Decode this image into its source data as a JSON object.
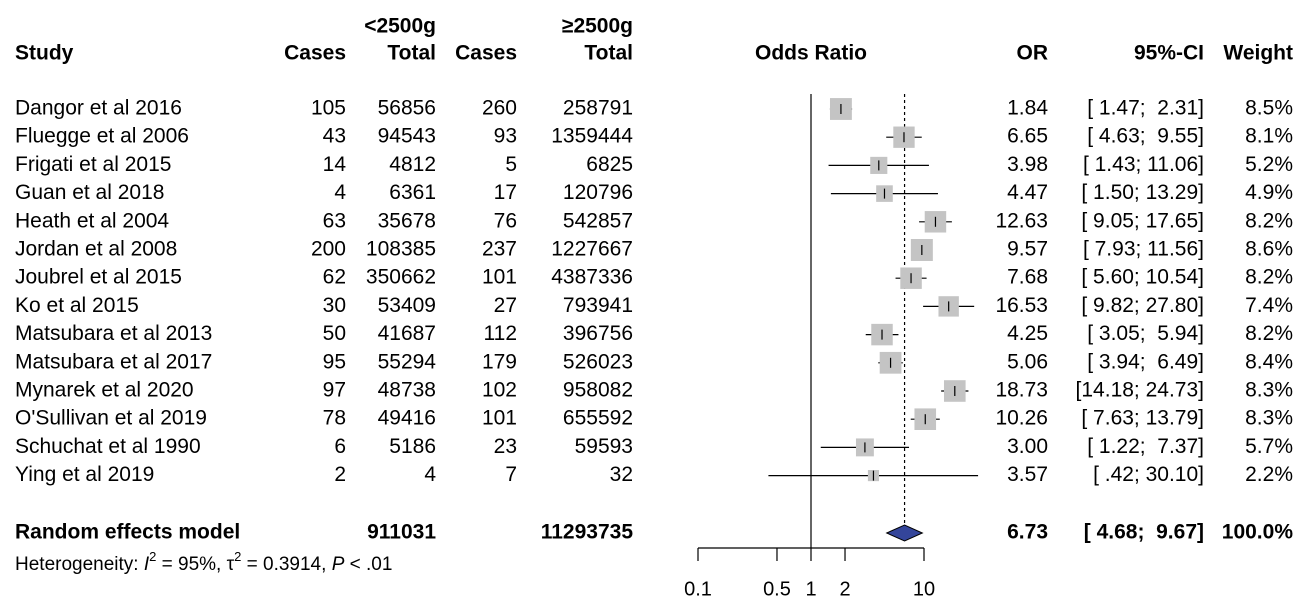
{
  "chart_data": {
    "type": "forest",
    "columns": [
      "Study",
      "Cases",
      "Total",
      "Cases",
      "Total",
      "Odds Ratio",
      "OR",
      "95%-CI",
      "Weight"
    ],
    "group_labels": [
      "<2500g",
      "≥2500g"
    ],
    "categories": [
      "Dangor et al 2016",
      "Fluegge et al 2006",
      "Frigati et al 2015",
      "Guan et al 2018",
      "Heath et al 2004",
      "Jordan et al 2008",
      "Joubrel et al 2015",
      "Ko et al 2015",
      "Matsubara et al 2013",
      "Matsubara et al 2017",
      "Mynarek et al 2020",
      "O'Sullivan et al 2019",
      "Schuchat et al 1990",
      "Ying et al 2019"
    ],
    "cases_lt": [
      105,
      43,
      14,
      4,
      63,
      200,
      62,
      30,
      50,
      95,
      97,
      78,
      6,
      2
    ],
    "total_lt": [
      56856,
      94543,
      4812,
      6361,
      35678,
      108385,
      350662,
      53409,
      41687,
      55294,
      48738,
      49416,
      5186,
      4
    ],
    "cases_ge": [
      260,
      93,
      5,
      17,
      76,
      237,
      101,
      27,
      112,
      179,
      102,
      101,
      23,
      7
    ],
    "total_ge": [
      258791,
      1359444,
      6825,
      120796,
      542857,
      1227667,
      4387336,
      793941,
      396756,
      526023,
      958082,
      655592,
      59593,
      32
    ],
    "values": [
      1.84,
      6.65,
      3.98,
      4.47,
      12.63,
      9.57,
      7.68,
      16.53,
      4.25,
      5.06,
      18.73,
      10.26,
      3.0,
      3.57
    ],
    "value_labels": [
      "1.84",
      "6.65",
      "3.98",
      "4.47",
      "12.63",
      "9.57",
      "7.68",
      "16.53",
      "4.25",
      "5.06",
      "18.73",
      "10.26",
      "3.00",
      "3.57"
    ],
    "ci_low": [
      1.47,
      4.63,
      1.43,
      1.5,
      9.05,
      7.93,
      5.6,
      9.82,
      3.05,
      3.94,
      14.18,
      7.63,
      1.22,
      0.42
    ],
    "ci_high": [
      2.31,
      9.55,
      11.06,
      13.29,
      17.65,
      11.56,
      10.54,
      27.8,
      5.94,
      6.49,
      24.73,
      13.79,
      7.37,
      30.1
    ],
    "ci_labels": [
      "[ 1.47;  2.31]",
      "[ 4.63;  9.55]",
      "[ 1.43; 11.06]",
      "[ 1.50; 13.29]",
      "[ 9.05; 17.65]",
      "[ 7.93; 11.56]",
      "[ 5.60; 10.54]",
      "[ 9.82; 27.80]",
      "[ 3.05;  5.94]",
      "[ 3.94;  6.49]",
      "[14.18; 24.73]",
      "[ 7.63; 13.79]",
      "[ 1.22;  7.37]",
      "[ .42; 30.10]"
    ],
    "weights": [
      8.5,
      8.1,
      5.2,
      4.9,
      8.2,
      8.6,
      8.2,
      7.4,
      8.2,
      8.4,
      8.3,
      8.3,
      5.7,
      2.2
    ],
    "weight_labels": [
      "8.5%",
      "8.1%",
      "5.2%",
      "4.9%",
      "8.2%",
      "8.6%",
      "8.2%",
      "7.4%",
      "8.2%",
      "8.4%",
      "8.3%",
      "8.3%",
      "5.7%",
      "2.2%"
    ],
    "color": "#c4c4c4",
    "summary": {
      "name": "Random effects model",
      "total_lt": 911031,
      "total_ge": 11293735,
      "value": 6.73,
      "value_label": "6.73",
      "ci_low": 4.68,
      "ci_high": 9.67,
      "ci_label": "[ 4.68;  9.67]",
      "weight": 100.0,
      "weight_label": "100.0%",
      "color": "#34459a"
    },
    "heterogeneity": [
      "Heterogeneity: ",
      "I",
      "2",
      " = 95%, τ",
      "2",
      " = 0.3914, ",
      "P",
      " < .01"
    ],
    "log_x": true,
    "xlim": [
      0.1,
      10
    ],
    "xticks": [
      0.1,
      0.5,
      1,
      2,
      10
    ]
  }
}
